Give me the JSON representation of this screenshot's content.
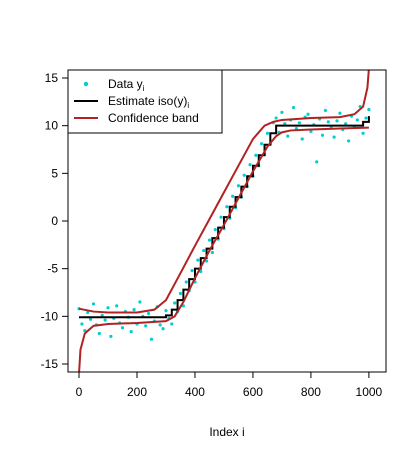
{
  "chart_data": {
    "type": "scatter-step",
    "xlabel": "Index i",
    "xlim": [
      -38,
      1059
    ],
    "ylim": [
      -15.84,
      15.84
    ],
    "xticks": [
      0,
      200,
      400,
      600,
      800,
      1000
    ],
    "yticks": [
      -15,
      -10,
      -5,
      0,
      5,
      10,
      15
    ],
    "legend": "topleft",
    "series": [
      {
        "name": "Data y",
        "name_subscript": "i",
        "kind": "points",
        "color": "#00CED1",
        "x": [
          0,
          10,
          20,
          30,
          40,
          50,
          60,
          70,
          80,
          90,
          100,
          110,
          120,
          130,
          140,
          150,
          160,
          170,
          180,
          190,
          200,
          210,
          220,
          230,
          240,
          250,
          260,
          270,
          280,
          290,
          300,
          310,
          320,
          330,
          340,
          350,
          360,
          370,
          380,
          390,
          400,
          410,
          420,
          430,
          440,
          450,
          460,
          470,
          480,
          490,
          500,
          510,
          520,
          530,
          540,
          550,
          560,
          570,
          580,
          590,
          600,
          610,
          620,
          630,
          640,
          650,
          660,
          670,
          680,
          690,
          700,
          710,
          720,
          730,
          740,
          750,
          760,
          770,
          780,
          790,
          800,
          810,
          820,
          830,
          840,
          850,
          860,
          870,
          880,
          890,
          900,
          910,
          920,
          930,
          940,
          950,
          960,
          970,
          980,
          990,
          1000
        ],
        "values": [
          -9.2,
          -10.8,
          -11.5,
          -9.6,
          -10.3,
          -8.7,
          -10.9,
          -11.8,
          -9.9,
          -10.4,
          -9.1,
          -12.1,
          -10.2,
          -8.9,
          -10.7,
          -11.2,
          -9.5,
          -10.1,
          -11.6,
          -9.3,
          -10.8,
          -8.5,
          -10.0,
          -11.0,
          -9.7,
          -12.4,
          -10.5,
          -9.0,
          -10.9,
          -11.3,
          -9.4,
          -10.2,
          -10.8,
          -8.6,
          -9.5,
          -7.6,
          -8.9,
          -6.4,
          -7.3,
          -5.2,
          -6.4,
          -4.1,
          -5.3,
          -3.1,
          -4.2,
          -2.0,
          -3.3,
          -0.9,
          -1.9,
          0.4,
          -0.8,
          1.5,
          0.3,
          2.6,
          1.4,
          3.7,
          2.5,
          4.8,
          3.6,
          5.9,
          4.7,
          6.9,
          5.8,
          8.1,
          7.0,
          9.2,
          8.1,
          10.3,
          10.8,
          9.3,
          11.4,
          10.2,
          8.9,
          10.6,
          11.9,
          9.7,
          10.3,
          8.6,
          10.9,
          11.2,
          9.4,
          10.1,
          6.2,
          10.7,
          9.0,
          11.6,
          10.4,
          9.8,
          8.8,
          10.5,
          11.3,
          9.6,
          10.2,
          8.4,
          11.0,
          9.9,
          10.6,
          12.0,
          9.2,
          10.8,
          11.7
        ]
      },
      {
        "name": "Estimate iso(y)",
        "name_subscript": "i",
        "kind": "step",
        "color": "#000000",
        "x": [
          0,
          300,
          320,
          340,
          360,
          380,
          400,
          420,
          440,
          460,
          480,
          500,
          520,
          540,
          560,
          580,
          600,
          620,
          640,
          660,
          680,
          980,
          1000
        ],
        "values": [
          -10.1,
          -9.9,
          -9.3,
          -8.3,
          -7.2,
          -6.1,
          -5.0,
          -3.9,
          -2.9,
          -1.8,
          -0.7,
          0.4,
          1.5,
          2.5,
          3.6,
          4.7,
          5.8,
          6.9,
          8.0,
          9.2,
          10.0,
          10.4,
          11.0
        ]
      },
      {
        "name": "Confidence band",
        "kind": "line",
        "color": "#B22222",
        "x": [
          0,
          50,
          100,
          200,
          260,
          300,
          330,
          360,
          400,
          450,
          500,
          550,
          600,
          640,
          670,
          700,
          750,
          800,
          900,
          950,
          980,
          995,
          1000
        ],
        "values": [
          -9.2,
          -9.5,
          -9.6,
          -9.6,
          -9.3,
          -8.3,
          -6.6,
          -4.9,
          -2.6,
          0.2,
          3.0,
          5.8,
          8.6,
          10.0,
          10.4,
          10.6,
          10.7,
          10.8,
          10.9,
          11.2,
          12.0,
          14.0,
          16.0
        ]
      },
      {
        "kind": "line",
        "color": "#B22222",
        "x": [
          0,
          5,
          20,
          50,
          100,
          200,
          300,
          330,
          360,
          400,
          450,
          500,
          550,
          600,
          650,
          680,
          700,
          730,
          800,
          900,
          1000
        ],
        "values": [
          -16,
          -13.5,
          -11.8,
          -11.0,
          -10.8,
          -10.7,
          -10.5,
          -10.0,
          -8.5,
          -6.0,
          -3.1,
          -0.4,
          2.4,
          5.2,
          7.8,
          8.9,
          9.3,
          9.5,
          9.6,
          9.7,
          9.8
        ]
      }
    ]
  }
}
